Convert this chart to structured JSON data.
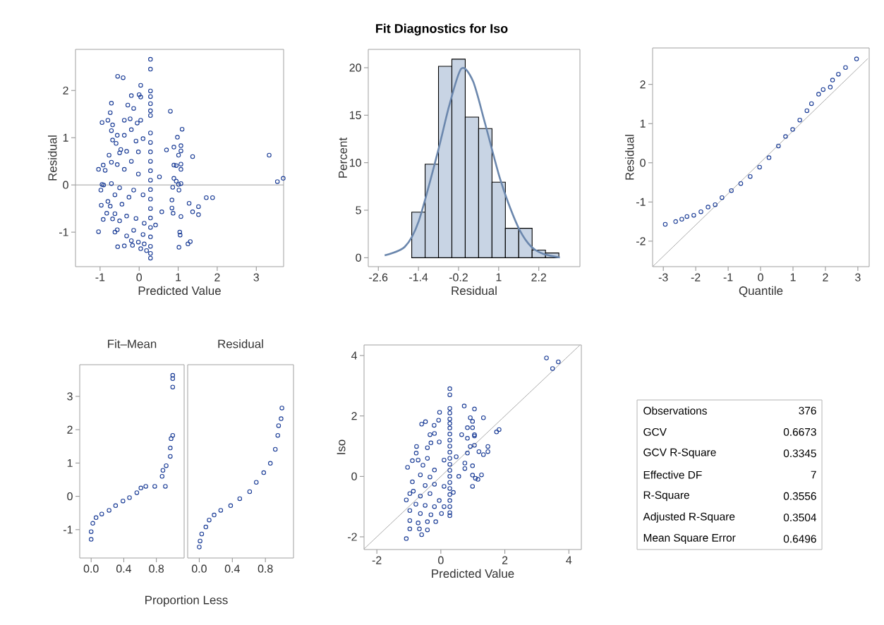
{
  "chart_data": [
    {
      "type": "scatter",
      "xlabel": "Predicted Value",
      "ylabel": "Residual",
      "marker": "circle",
      "color": "#1a3c96",
      "xlim": [
        -1.63,
        3.7
      ],
      "ylim": [
        -1.73,
        2.87
      ],
      "xticks": [
        -1,
        0,
        1,
        2,
        3
      ],
      "yticks": [
        -1,
        0,
        1,
        2
      ],
      "ref_lines": [
        {
          "axis": "y",
          "value": 0,
          "color": "#a0a0a0"
        }
      ],
      "x": [
        3.33,
        3.54,
        3.69,
        0.29,
        0.29,
        0.29,
        0.29,
        0.29,
        0.29,
        0.29,
        0.29,
        0.29,
        0.29,
        0.29,
        0.29,
        0.29,
        0.29,
        0.29,
        0.29,
        0.29,
        0.29,
        0.29,
        0.29,
        0.29,
        0.29,
        -0.55,
        -0.41,
        0.04,
        -0.2,
        0,
        0.04,
        -0.71,
        -0.29,
        -0.14,
        -0.74,
        0.8,
        -0.95,
        -0.8,
        -0.38,
        -0.23,
        0.04,
        -0.05,
        -0.68,
        -0.2,
        1.1,
        -0.71,
        -0.38,
        -0.56,
        0.98,
        0.1,
        -0.68,
        -0.08,
        -0.59,
        1.07,
        0.89,
        0.7,
        -0.47,
        -0.32,
        -0.02,
        1.07,
        1.01,
        1.37,
        -0.77,
        -0.5,
        -0.71,
        -0.2,
        0.89,
        1.07,
        0.95,
        1.07,
        -1.04,
        -0.92,
        -0.87,
        -0.56,
        -0.38,
        -0.02,
        0.52,
        0.89,
        0.95,
        1.07,
        1.01,
        -0.95,
        -0.91,
        -0.71,
        -0.98,
        0.86,
        1.02,
        -0.5,
        -0.14,
        -0.62,
        -0.26,
        0.1,
        1.72,
        1.88,
        0.84,
        1.28,
        -0.8,
        -0.44,
        -0.97,
        -0.74,
        0.84,
        1.52,
        0.58,
        1.37,
        0.87,
        1.52,
        1.07,
        -0.83,
        -0.62,
        -0.32,
        -0.92,
        -0.68,
        -0.5,
        -0.08,
        0.13,
        0.42,
        -0.14,
        -0.62,
        -1.04,
        -0.56,
        -0.32,
        0.1,
        1.04,
        1.05,
        -0.2,
        -0.02,
        1.31,
        1.25,
        1.02,
        -0.55,
        -0.38,
        -0.17,
        0.04,
        0.19,
        0.13
      ],
      "values": [
        0.63,
        0.07,
        0.14,
        2.66,
        2.45,
        1.99,
        1.87,
        1.72,
        1.57,
        1.47,
        1.1,
        0.9,
        0.7,
        0.5,
        0.3,
        0.1,
        -0.1,
        -0.3,
        -0.5,
        -0.7,
        -0.9,
        -1.1,
        -1.3,
        -1.45,
        -1.55,
        2.3,
        2.27,
        2.11,
        1.89,
        1.91,
        1.86,
        1.73,
        1.69,
        1.62,
        1.53,
        1.56,
        1.32,
        1.37,
        1.37,
        1.4,
        1.37,
        1.31,
        1.27,
        1.17,
        1.18,
        1.15,
        1.05,
        1.05,
        1.01,
        0.98,
        0.95,
        0.93,
        0.88,
        0.83,
        0.8,
        0.74,
        0.75,
        0.71,
        0.7,
        0.72,
        0.63,
        0.6,
        0.63,
        0.68,
        0.48,
        0.5,
        0.42,
        0.44,
        0.41,
        0.33,
        0.33,
        0.42,
        0.31,
        0.43,
        0.33,
        0.23,
        0.17,
        0.14,
        0.08,
        0.03,
        0.01,
        0.01,
        0,
        0.03,
        -0.11,
        -0.05,
        -0.11,
        -0.06,
        -0.11,
        -0.21,
        -0.26,
        -0.21,
        -0.27,
        -0.27,
        -0.32,
        -0.39,
        -0.35,
        -0.41,
        -0.43,
        -0.45,
        -0.49,
        -0.46,
        -0.57,
        -0.57,
        -0.6,
        -0.63,
        -0.67,
        -0.6,
        -0.61,
        -0.66,
        -0.73,
        -0.72,
        -0.76,
        -0.71,
        -0.81,
        -0.85,
        -0.96,
        -1.0,
        -0.99,
        -0.95,
        -1.08,
        -1.05,
        -1.0,
        -1.06,
        -1.18,
        -1.21,
        -1.2,
        -1.25,
        -1.32,
        -1.31,
        -1.29,
        -1.28,
        -1.35,
        -1.39,
        -1.25
      ]
    },
    {
      "type": "histogram",
      "title": "Fit Diagnostics for Iso",
      "xlabel": "Residual",
      "ylabel": "Percent",
      "color": "#c8d4e4",
      "xlim": [
        -2.9,
        3.43
      ],
      "ylim": [
        -0.94,
        21.93
      ],
      "xticks": [
        -2.6,
        -1.4,
        -0.2,
        1,
        2.2
      ],
      "yticks": [
        0,
        5,
        10,
        15,
        20
      ],
      "bins": [
        -1.6,
        -1.2,
        -0.8,
        -0.4,
        0,
        0.4,
        0.8,
        1.2,
        1.6,
        2.0,
        2.4,
        2.8
      ],
      "values": [
        4.8,
        9.85,
        20.15,
        20.9,
        14.8,
        13.6,
        7.95,
        3.1,
        3.1,
        0.8,
        0.5
      ],
      "series": [
        {
          "type": "line",
          "color": "#6b87ad",
          "x": [
            -2.41,
            -1.81,
            -1.39,
            -0.83,
            -0.48,
            -0.12,
            0.23,
            0.58,
            1.0,
            1.28,
            1.63,
            1.98,
            2.34,
            2.83
          ],
          "values": [
            0.25,
            1.14,
            3.86,
            11.0,
            16.0,
            19.9,
            18.6,
            14.3,
            8.8,
            5.84,
            2.9,
            1.14,
            0.4,
            0.02
          ]
        }
      ]
    },
    {
      "type": "scatter",
      "xlabel": "Quantile",
      "ylabel": "Residual",
      "marker": "circle",
      "xlim": [
        -3.33,
        3.35
      ],
      "ylim": [
        -2.65,
        2.93
      ],
      "xticks": [
        -3,
        -2,
        -1,
        0,
        1,
        2,
        3
      ],
      "yticks": [
        -2,
        -1,
        0,
        1,
        2
      ],
      "series": [
        {
          "color": "#1a3c96",
          "x": [
            -2.94,
            -2.62,
            -2.43,
            -2.27,
            -2.06,
            -1.84,
            -1.62,
            -1.4,
            -1.19,
            -0.9,
            -0.61,
            -0.32,
            -0.03,
            0.26,
            0.55,
            0.77,
            0.99,
            1.21,
            1.43,
            1.57,
            1.79,
            1.93,
            2.15,
            2.22,
            2.4,
            2.62,
            2.96
          ],
          "values": [
            -1.57,
            -1.5,
            -1.44,
            -1.37,
            -1.34,
            -1.25,
            -1.13,
            -1.07,
            -0.89,
            -0.71,
            -0.53,
            -0.35,
            -0.11,
            0.13,
            0.43,
            0.67,
            0.85,
            1.09,
            1.33,
            1.51,
            1.75,
            1.87,
            1.93,
            2.11,
            2.26,
            2.43,
            2.65
          ]
        },
        {
          "type": "line",
          "marker": "none",
          "color": "#a0a0a0",
          "x": [
            -3.33,
            3.31
          ],
          "values": [
            -2.65,
            2.66
          ]
        }
      ]
    },
    {
      "type": "scatter",
      "title": "Fit–Mean",
      "xlabel": "Proportion Less",
      "marker": "circle",
      "color": "#1a3c96",
      "xlim": [
        -0.14,
        1.14
      ],
      "ylim": [
        -1.85,
        3.95
      ],
      "xticks": [
        {
          "value": 0,
          "label": "0.0"
        },
        0.4,
        0.8
      ],
      "yticks": [
        -1,
        0,
        1,
        2,
        3
      ],
      "x": [
        0,
        0,
        0.02,
        0.06,
        0.13,
        0.22,
        0.3,
        0.39,
        0.47,
        0.56,
        0.61,
        0.67,
        0.78,
        0.91,
        0.87,
        0.88,
        0.92,
        0.97,
        0.97,
        0.98,
        1.0,
        1.0,
        1.0,
        1.0
      ],
      "values": [
        -1.29,
        -1.06,
        -0.81,
        -0.64,
        -0.53,
        -0.42,
        -0.28,
        -0.14,
        -0.04,
        0.11,
        0.25,
        0.3,
        0.3,
        0.3,
        0.6,
        0.78,
        0.92,
        1.2,
        1.45,
        1.73,
        1.83,
        3.28,
        3.53,
        3.63
      ]
    },
    {
      "type": "scatter",
      "title": "Residual",
      "marker": "circle",
      "color": "#1a3c96",
      "tick_labels": "x",
      "xlim": [
        -0.14,
        1.14
      ],
      "ylim": [
        -1.85,
        3.95
      ],
      "xticks": [
        {
          "value": 0,
          "label": "0.0"
        },
        0.4,
        0.8
      ],
      "x": [
        0,
        0.01,
        0.03,
        0.08,
        0.12,
        0.18,
        0.26,
        0.38,
        0.49,
        0.61,
        0.69,
        0.78,
        0.86,
        0.92,
        0.95,
        0.96,
        0.99,
        1.0
      ],
      "values": [
        -1.52,
        -1.34,
        -1.13,
        -0.92,
        -0.71,
        -0.56,
        -0.42,
        -0.28,
        -0.07,
        0.14,
        0.42,
        0.71,
        0.99,
        1.41,
        1.83,
        2.12,
        2.33,
        2.65
      ]
    },
    {
      "type": "scatter",
      "xlabel": "Predicted Value",
      "ylabel": "Iso",
      "marker": "circle",
      "xlim": [
        -2.4,
        4.39
      ],
      "ylim": [
        -2.42,
        4.35
      ],
      "xticks": [
        -2,
        0,
        2,
        4
      ],
      "yticks": [
        -2,
        0,
        2,
        4
      ],
      "series": [
        {
          "color": "#1a3c96",
          "x": [
            3.3,
            3.49,
            3.67,
            0.28,
            0.28,
            0.28,
            0.28,
            0.28,
            0.28,
            0.28,
            0.28,
            0.28,
            0.28,
            0.28,
            0.28,
            0.28,
            0.28,
            0.28,
            0.28,
            0.28,
            0.28,
            0.28,
            0.28,
            0.28,
            0.28,
            0.73,
            1.05,
            1.33,
            0.92,
            -0.04,
            -0.07,
            -0.48,
            -0.6,
            -0.21,
            0.99,
            0.83,
            0.99,
            1.74,
            1.82,
            -0.34,
            -0.2,
            0.65,
            1.05,
            0.83,
            1.05,
            -0.31,
            -0.05,
            -0.76,
            -0.42,
            1.47,
            0.92,
            1.05,
            0.83,
            1.19,
            1.47,
            1.33,
            -0.77,
            0.48,
            -0.42,
            -0.89,
            -0.71,
            0.1,
            0.75,
            0.99,
            -1.04,
            0.75,
            -0.56,
            -0.2,
            0.99,
            1.27,
            1.08,
            1.16,
            0.56,
            -0.64,
            -0.34,
            -0.89,
            0.99,
            -0.49,
            -0.2,
            0.1,
            0.39,
            -0.86,
            -0.97,
            -0.64,
            -0.34,
            -1.08,
            -0.05,
            -0.78,
            -0.49,
            -0.2,
            0.1,
            -0.97,
            -0.64,
            -0.31,
            0.02,
            -0.97,
            -0.71,
            -0.42,
            -0.16,
            -0.97,
            -0.67,
            -0.42,
            -0.6,
            -1.08
          ],
          "values": [
            3.92,
            3.57,
            3.79,
            2.9,
            2.7,
            2.25,
            2.1,
            1.9,
            1.75,
            1.4,
            1.2,
            1.0,
            0.8,
            0.6,
            0.4,
            0.2,
            0,
            -0.2,
            -0.4,
            -0.6,
            -0.8,
            -1.0,
            -1.2,
            -1.3,
            1.6,
            2.33,
            2.23,
            1.94,
            1.94,
            2.12,
            1.86,
            1.81,
            1.73,
            1.69,
            1.82,
            1.61,
            1.61,
            1.47,
            1.55,
            1.38,
            1.42,
            1.38,
            1.38,
            1.26,
            1.34,
            1.11,
            1.14,
            0.99,
            0.95,
            0.99,
            0.99,
            1.03,
            0.77,
            0.82,
            0.82,
            0.72,
            0.77,
            0.65,
            0.6,
            0.52,
            0.54,
            0.54,
            0.44,
            0.35,
            0.3,
            0.26,
            0.37,
            0.21,
            0.04,
            0.05,
            -0.06,
            -0.1,
            0,
            0.05,
            -0.02,
            -0.18,
            -0.33,
            -0.3,
            -0.26,
            -0.33,
            -0.53,
            -0.49,
            -0.57,
            -0.65,
            -0.57,
            -0.78,
            -0.8,
            -0.92,
            -0.96,
            -1.0,
            -1.0,
            -1.13,
            -1.23,
            -1.27,
            -1.23,
            -1.46,
            -1.54,
            -1.5,
            -1.5,
            -1.74,
            -1.74,
            -1.77,
            -1.93,
            -2.06
          ]
        },
        {
          "type": "line",
          "marker": "none",
          "color": "#a0a0a0",
          "x": [
            -2.4,
            4.34
          ],
          "values": [
            -2.4,
            4.34
          ]
        }
      ]
    },
    {
      "type": "other",
      "data_labels": true,
      "categories": [
        "Observations",
        "GCV",
        "GCV R-Square",
        "Effective DF",
        "R-Square",
        "Adjusted R-Square",
        "Mean Square Error"
      ],
      "values": [
        376,
        0.6673,
        0.3345,
        7,
        0.3556,
        0.3504,
        0.6496
      ]
    }
  ]
}
